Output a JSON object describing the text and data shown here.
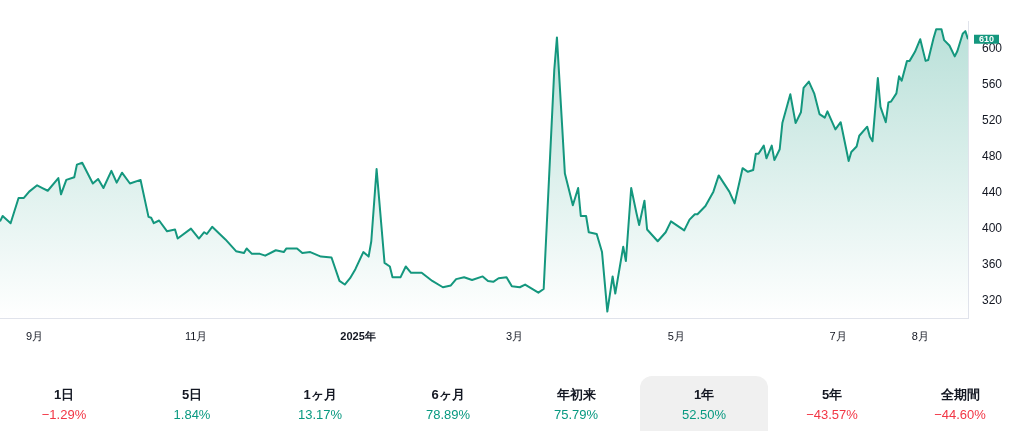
{
  "chart_data": {
    "type": "area",
    "x": [
      "2024-08-19",
      "2024-08-20",
      "2024-08-23",
      "2024-08-26",
      "2024-08-28",
      "2024-08-30",
      "2024-09-02",
      "2024-09-04",
      "2024-09-06",
      "2024-09-10",
      "2024-09-11",
      "2024-09-13",
      "2024-09-16",
      "2024-09-17",
      "2024-09-19",
      "2024-09-23",
      "2024-09-25",
      "2024-09-27",
      "2024-09-30",
      "2024-10-02",
      "2024-10-04",
      "2024-10-07",
      "2024-10-11",
      "2024-10-14",
      "2024-10-15",
      "2024-10-16",
      "2024-10-18",
      "2024-10-21",
      "2024-10-24",
      "2024-10-25",
      "2024-10-30",
      "2024-11-02",
      "2024-11-04",
      "2024-11-05",
      "2024-11-07",
      "2024-11-12",
      "2024-11-16",
      "2024-11-19",
      "2024-11-20",
      "2024-11-22",
      "2024-11-25",
      "2024-11-27",
      "2024-12-01",
      "2024-12-04",
      "2024-12-05",
      "2024-12-09",
      "2024-12-11",
      "2024-12-14",
      "2024-12-18",
      "2024-12-22",
      "2024-12-25",
      "2024-12-27",
      "2024-12-29",
      "2024-12-31",
      "2025-01-03",
      "2025-01-05",
      "2025-01-06",
      "2025-01-08",
      "2025-01-11",
      "2025-01-13",
      "2025-01-14",
      "2025-01-17",
      "2025-01-19",
      "2025-01-21",
      "2025-01-25",
      "2025-01-29",
      "2025-02-02",
      "2025-02-05",
      "2025-02-07",
      "2025-02-10",
      "2025-02-13",
      "2025-02-17",
      "2025-02-19",
      "2025-02-21",
      "2025-02-23",
      "2025-02-26",
      "2025-02-28",
      "2025-03-03",
      "2025-03-05",
      "2025-03-10",
      "2025-03-12",
      "2025-03-16",
      "2025-03-17",
      "2025-03-19",
      "2025-03-20",
      "2025-03-23",
      "2025-03-25",
      "2025-03-26",
      "2025-03-28",
      "2025-03-29",
      "2025-04-01",
      "2025-04-03",
      "2025-04-05",
      "2025-04-07",
      "2025-04-08",
      "2025-04-11",
      "2025-04-12",
      "2025-04-14",
      "2025-04-16",
      "2025-04-17",
      "2025-04-19",
      "2025-04-20",
      "2025-04-24",
      "2025-04-27",
      "2025-04-29",
      "2025-05-04",
      "2025-05-06",
      "2025-05-08",
      "2025-05-09",
      "2025-05-12",
      "2025-05-15",
      "2025-05-17",
      "2025-05-21",
      "2025-05-23",
      "2025-05-26",
      "2025-05-28",
      "2025-05-30",
      "2025-05-31",
      "2025-06-01",
      "2025-06-03",
      "2025-06-04",
      "2025-06-06",
      "2025-06-07",
      "2025-06-09",
      "2025-06-10",
      "2025-06-13",
      "2025-06-15",
      "2025-06-17",
      "2025-06-18",
      "2025-06-20",
      "2025-06-22",
      "2025-06-24",
      "2025-06-26",
      "2025-06-27",
      "2025-06-30",
      "2025-07-02",
      "2025-07-05",
      "2025-07-06",
      "2025-07-08",
      "2025-07-09",
      "2025-07-12",
      "2025-07-13",
      "2025-07-14",
      "2025-07-16",
      "2025-07-17",
      "2025-07-19",
      "2025-07-20",
      "2025-07-21",
      "2025-07-23",
      "2025-07-24",
      "2025-07-25",
      "2025-07-27",
      "2025-07-28",
      "2025-07-30",
      "2025-08-01",
      "2025-08-03",
      "2025-08-04",
      "2025-08-06",
      "2025-08-07",
      "2025-08-09",
      "2025-08-10",
      "2025-08-12",
      "2025-08-14",
      "2025-08-15",
      "2025-08-17",
      "2025-08-18",
      "2025-08-19"
    ],
    "series": [
      {
        "color": "#14977e",
        "values": [
          408,
          414,
          406,
          434,
          434,
          441,
          448,
          445,
          442,
          456,
          438,
          454,
          457,
          471,
          473,
          450,
          455,
          445,
          464,
          451,
          462,
          450,
          454,
          413,
          412,
          406,
          409,
          397,
          399,
          389,
          400,
          389,
          396,
          394,
          402,
          388,
          375,
          373,
          378,
          372,
          372,
          370,
          376,
          374,
          378,
          378,
          373,
          374,
          369,
          368,
          342,
          338,
          345,
          355,
          374,
          369,
          386,
          466,
          362,
          358,
          346,
          346,
          358,
          351,
          351,
          342,
          335,
          337,
          344,
          346,
          343,
          347,
          342,
          341,
          345,
          346,
          336,
          335,
          338,
          329,
          333,
          576,
          612,
          512,
          461,
          426,
          445,
          414,
          414,
          396,
          394,
          374,
          308,
          347,
          328,
          380,
          364,
          445,
          417,
          404,
          431,
          399,
          386,
          396,
          408,
          398,
          410,
          416,
          416,
          425,
          441,
          459,
          441,
          428,
          467,
          463,
          465,
          483,
          483,
          492,
          478,
          492,
          476,
          488,
          517,
          549,
          517,
          529,
          556,
          563,
          550,
          527,
          523,
          530,
          510,
          518,
          475,
          485,
          491,
          503,
          513,
          502,
          497,
          567,
          535,
          518,
          540,
          541,
          550,
          569,
          564,
          586,
          586,
          596,
          610,
          586,
          587,
          611,
          621,
          621,
          609,
          603,
          591,
          597,
          616,
          619,
          610
        ]
      }
    ],
    "xticks": [
      {
        "value": "2024-09",
        "label": "9月"
      },
      {
        "value": "2024-11",
        "label": "11月"
      },
      {
        "value": "2025",
        "label": "2025年"
      },
      {
        "value": "2025-03",
        "label": "3月"
      },
      {
        "value": "2025-05",
        "label": "5月"
      },
      {
        "value": "2025-07",
        "label": "7月"
      },
      {
        "value": "2025-08",
        "label": "8月"
      }
    ],
    "xlim": [
      "2024-08-19",
      "2025-08-19"
    ],
    "ylim": [
      300,
      630
    ],
    "yticks": [
      320,
      360,
      400,
      440,
      480,
      520,
      560,
      600
    ],
    "grid": false,
    "legend": false,
    "marker": "none",
    "line_style": "solid",
    "annotations": [
      {
        "text": "610",
        "x": "2025-08-19",
        "y": 610
      },
      "1日",
      "−1.29%",
      "5日",
      "1.84%",
      "1ヶ月",
      "13.17%",
      "6ヶ月",
      "78.89%",
      "年初来",
      "75.79%",
      "1年",
      "52.50%",
      "5年",
      "−43.57%",
      "全期間",
      "−44.60%"
    ]
  }
}
